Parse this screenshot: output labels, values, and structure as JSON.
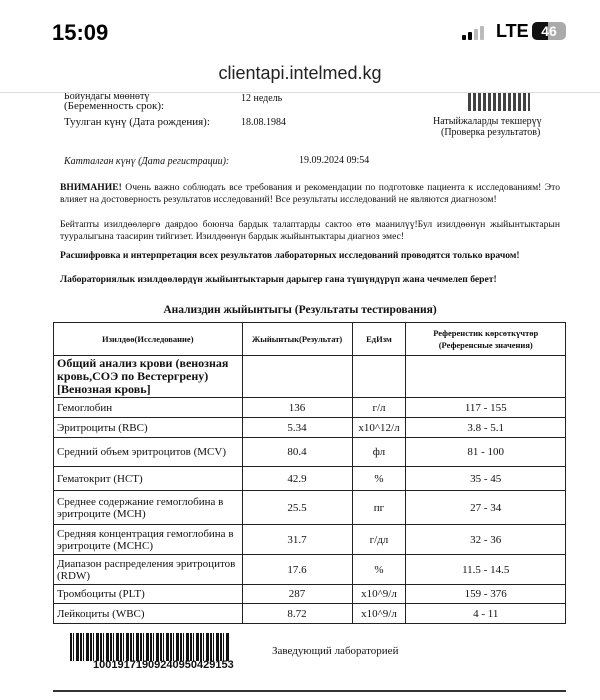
{
  "status_bar": {
    "time": "15:09",
    "network": "LTE",
    "battery": "46",
    "battery_level": 46
  },
  "browser": {
    "url": "clientapi.intelmed.kg"
  },
  "patient": {
    "pregnancy_label_ky": "Бойундагы мөөнөтү",
    "pregnancy_label": "(Беременность срок):",
    "pregnancy_value": "12  недель",
    "dob_label": "Туулган күнү (Дата рождения):",
    "dob_value": "18.08.1984",
    "reg_label": "Катталган күнү (Дата регистрации):",
    "reg_value": "19.09.2024 09:54",
    "verify_ky": "Натыйжаларды текшерүү",
    "verify_ru": "(Проверка результатов)"
  },
  "notice": {
    "attention": "ВНИМАНИЕ!",
    "ru": " Очень важно соблюдать все требования и рекомендации по подготовке пациента к исследованиям! Это влияет на достоверность результатов исследований! Все результаты исследований не являются диагнозом!",
    "ky": "Бейтапты изилдөөлөргө даярдоо боюнча бардык талаптарды сактоо өтө маанилүү!Бул изилдөөнүн жыйынтыктарын тууралыгына таасирин тийгизет. Изилдөөнүн бардык жыйынтыктары диагноз эмес!",
    "bold_ru": "Расшифровка и интерпретация всех результатов лабораторных исследований проводятся только врачом!",
    "bold_ky": "Лабораториялык изилдөөлөрдүн жыйынтыктарын дарыгер гана түшүндүрүп жана чечмелеп берет!"
  },
  "results": {
    "title": "Анализдин жыйынтыгы (Результаты тестирования)",
    "headers": [
      "Изилдөө(Исследование)",
      "Жыйынтык(Результат)",
      "ЕдИзм",
      "Референстик көрсөткүчтөр (Референсные значения)"
    ],
    "group": "Общий анализ крови (венозная кровь,СОЭ по Вестергрену) [Венозная кровь]",
    "rows": [
      {
        "name": "Гемоглобин",
        "value": "136",
        "unit": "г/л",
        "ref": "117 - 155"
      },
      {
        "name": "Эритроциты (RBC)",
        "value": "5.34",
        "unit": "x10^12/л",
        "ref": "3.8 - 5.1"
      },
      {
        "name": "Средний объем эритроцитов (MCV)",
        "value": "80.4",
        "unit": "фл",
        "ref": "81 - 100"
      },
      {
        "name": "Гематокрит (HCT)",
        "value": "42.9",
        "unit": "%",
        "ref": "35 - 45"
      },
      {
        "name": "Среднее содержание гемоглобина в эритроците (MCH)",
        "value": "25.5",
        "unit": "пг",
        "ref": "27 - 34"
      },
      {
        "name": "Средняя концентрация гемоглобина в эритроците (MCHC)",
        "value": "31.7",
        "unit": "г/дл",
        "ref": "32 - 36"
      },
      {
        "name": "Диапазон распределения эритроцитов (RDW)",
        "value": "17.6",
        "unit": "%",
        "ref": "11.5 - 14.5"
      },
      {
        "name": "Тромбоциты (PLT)",
        "value": "287",
        "unit": "x10^9/л",
        "ref": "159 - 376"
      },
      {
        "name": "Лейкоциты (WBC)",
        "value": "8.72",
        "unit": "x10^9/л",
        "ref": "4 - 11"
      }
    ]
  },
  "footer": {
    "barcode": "10019171909240950429153",
    "signature": "Заведующий лабораторией"
  }
}
